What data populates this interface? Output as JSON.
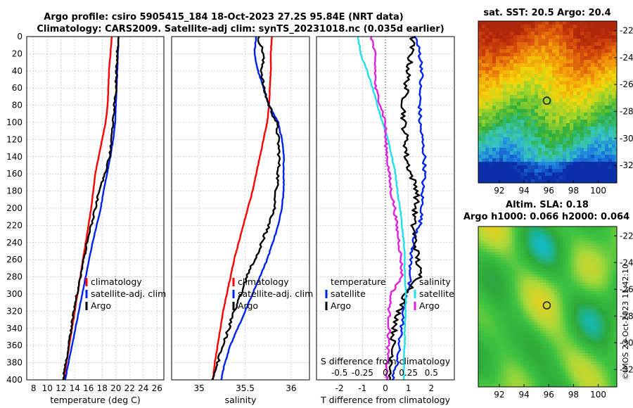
{
  "colors": {
    "climatology": "#ff0000",
    "satellite": "#0022ee",
    "argo": "#000000",
    "cyan": "#22e0e8",
    "magenta": "#e020e0",
    "grid": "#c8c8c8"
  },
  "header": {
    "line1": "Argo profile: csiro 5905415_184 18-Oct-2023 27.2S 95.84E (NRT data)",
    "line2": "Climatology: CARS2009. Satellite-adj clim: synTS_20231018.nc (0.035d earlier)"
  },
  "copyright": "©IMOS 23-Oct-2023 11:42:10",
  "chart_data": [
    {
      "id": "temperature",
      "type": "line",
      "xlabel": "temperature (deg C)",
      "ylabel": "",
      "xlim": [
        7,
        27
      ],
      "ylim": [
        400,
        0
      ],
      "xticks": [
        "8",
        "10",
        "12",
        "14",
        "16",
        "18",
        "20",
        "22",
        "24",
        "26"
      ],
      "xtick_values": [
        8,
        10,
        12,
        14,
        16,
        18,
        20,
        22,
        24,
        26
      ],
      "yticks": [
        "0",
        "20",
        "40",
        "60",
        "80",
        "100",
        "120",
        "140",
        "160",
        "180",
        "200",
        "220",
        "240",
        "260",
        "280",
        "300",
        "320",
        "340",
        "360",
        "380",
        "400"
      ],
      "ytick_values": [
        0,
        20,
        40,
        60,
        80,
        100,
        120,
        140,
        160,
        180,
        200,
        220,
        240,
        260,
        280,
        300,
        320,
        340,
        360,
        380,
        400
      ],
      "grid": true,
      "legend": [
        "climatology",
        "satellite-adj. clim",
        "Argo"
      ],
      "legend_position": "bottom-right",
      "depth": [
        0,
        20,
        40,
        60,
        80,
        100,
        120,
        140,
        160,
        180,
        200,
        220,
        240,
        260,
        280,
        300,
        320,
        340,
        360,
        380,
        400
      ],
      "series": [
        {
          "name": "climatology",
          "color": "red",
          "values": [
            19.4,
            19.2,
            19.0,
            18.9,
            18.8,
            18.5,
            18.0,
            17.5,
            17.0,
            16.7,
            16.4,
            16.0,
            15.6,
            15.2,
            14.8,
            14.4,
            14.0,
            13.6,
            13.2,
            12.8,
            12.4
          ]
        },
        {
          "name": "satellite-adj. clim",
          "color": "blue",
          "values": [
            20.4,
            20.3,
            20.2,
            20.1,
            20.0,
            19.9,
            19.6,
            19.2,
            18.7,
            18.2,
            17.8,
            17.2,
            16.6,
            16.1,
            15.6,
            15.1,
            14.6,
            14.1,
            13.6,
            13.1,
            12.6
          ]
        },
        {
          "name": "Argo",
          "color": "black",
          "values": [
            20.3,
            20.2,
            20.1,
            20.0,
            19.8,
            19.6,
            19.4,
            19.1,
            18.4,
            17.6,
            17.0,
            16.4,
            15.8,
            15.3,
            14.8,
            14.3,
            13.9,
            13.5,
            13.1,
            12.7,
            12.3
          ]
        }
      ]
    },
    {
      "id": "salinity",
      "type": "line",
      "xlabel": "salinity",
      "xlim": [
        34.7,
        36.2
      ],
      "ylim": [
        400,
        0
      ],
      "xticks": [
        "35",
        "35.5",
        "36"
      ],
      "xtick_values": [
        35,
        35.5,
        36
      ],
      "grid": true,
      "legend": [
        "climatology",
        "satellite-adj. clim",
        "Argo"
      ],
      "legend_position": "bottom-right",
      "depth": [
        0,
        20,
        40,
        60,
        80,
        100,
        120,
        140,
        160,
        180,
        200,
        220,
        240,
        260,
        280,
        300,
        320,
        340,
        360,
        380,
        400
      ],
      "series": [
        {
          "name": "climatology",
          "color": "red",
          "values": [
            35.79,
            35.78,
            35.78,
            35.77,
            35.76,
            35.74,
            35.7,
            35.66,
            35.62,
            35.58,
            35.53,
            35.48,
            35.43,
            35.38,
            35.34,
            35.3,
            35.26,
            35.23,
            35.2,
            35.17,
            35.15
          ]
        },
        {
          "name": "satellite-adj. clim",
          "color": "blue",
          "values": [
            35.62,
            35.6,
            35.64,
            35.7,
            35.76,
            35.86,
            35.9,
            35.92,
            35.92,
            35.92,
            35.9,
            35.86,
            35.8,
            35.74,
            35.66,
            35.58,
            35.5,
            35.42,
            35.34,
            35.28,
            35.24
          ]
        },
        {
          "name": "Argo",
          "color": "black",
          "values": [
            35.64,
            35.7,
            35.68,
            35.7,
            35.76,
            35.84,
            35.86,
            35.87,
            35.86,
            35.84,
            35.82,
            35.76,
            35.68,
            35.6,
            35.52,
            35.45,
            35.38,
            35.32,
            35.26,
            35.2,
            35.14
          ]
        }
      ]
    },
    {
      "id": "difference",
      "type": "line",
      "xlabel": "T difference from climatology",
      "xlabel_top": "S difference from climatology",
      "xlim": [
        -3,
        3
      ],
      "ylim": [
        400,
        0
      ],
      "xticks": [
        "-2",
        "-1",
        "0",
        "1",
        "2"
      ],
      "xtick_values": [
        -2,
        -1,
        0,
        1,
        2
      ],
      "sticks": [
        "-0.5",
        "-0.25",
        "0",
        "0.25",
        "0.5"
      ],
      "stick_values": [
        -0.5,
        -0.25,
        0,
        0.25,
        0.5
      ],
      "grid": true,
      "legend_left_title": "temperature",
      "legend_left": [
        "satellite",
        "Argo"
      ],
      "legend_right_title": "salinity",
      "legend_right": [
        "satellite",
        "Argo"
      ],
      "depth": [
        0,
        20,
        40,
        60,
        80,
        100,
        120,
        140,
        160,
        180,
        200,
        220,
        240,
        260,
        280,
        300,
        320,
        340,
        360,
        380,
        400
      ],
      "series": [
        {
          "name": "T satellite",
          "color": "blue",
          "units": "T",
          "values": [
            1.3,
            1.5,
            1.6,
            1.5,
            1.5,
            1.5,
            1.6,
            1.7,
            1.7,
            1.6,
            1.6,
            1.5,
            1.2,
            1.1,
            1.1,
            0.9,
            0.8,
            0.7,
            0.6,
            0.5,
            0.3
          ]
        },
        {
          "name": "T Argo",
          "color": "black",
          "units": "T",
          "values": [
            1.2,
            1.1,
            1.0,
            0.9,
            0.8,
            0.8,
            0.9,
            0.9,
            1.1,
            1.4,
            1.3,
            1.2,
            1.3,
            1.4,
            1.5,
            0.9,
            0.6,
            0.4,
            0.3,
            0.3,
            0.2
          ]
        },
        {
          "name": "S satellite",
          "color": "cyan",
          "units": "S",
          "values": [
            -0.3,
            -0.27,
            -0.2,
            -0.14,
            -0.09,
            -0.03,
            0.03,
            0.07,
            0.11,
            0.13,
            0.16,
            0.18,
            0.2,
            0.21,
            0.21,
            0.22,
            0.22,
            0.21,
            0.21,
            0.2,
            0.2
          ]
        },
        {
          "name": "S Argo",
          "color": "magenta",
          "units": "S",
          "values": [
            -0.15,
            -0.12,
            -0.11,
            -0.11,
            -0.05,
            0.0,
            0.0,
            0.02,
            0.04,
            0.06,
            0.1,
            0.12,
            0.15,
            0.17,
            0.18,
            0.06,
            0.04,
            0.04,
            0.03,
            0.02,
            0.01
          ]
        }
      ]
    },
    {
      "id": "sst-map",
      "type": "heatmap",
      "title": "sat. SST: 20.5 Argo: 20.4",
      "xlim": [
        90.3,
        101.5
      ],
      "ylim": [
        -33.3,
        -21.3
      ],
      "xticks": [
        "92",
        "94",
        "96",
        "98",
        "100"
      ],
      "xtick_values": [
        92,
        94,
        96,
        98,
        100
      ],
      "yticks": [
        "-22",
        "-24",
        "-26",
        "-28",
        "-30",
        "-32"
      ],
      "ytick_values": [
        -22,
        -24,
        -26,
        -28,
        -30,
        -32
      ],
      "marker": {
        "lon": 95.84,
        "lat": -27.2
      },
      "color_stops": [
        "#0b2fa8",
        "#1e7fe0",
        "#38c8c0",
        "#2fae3c",
        "#9ad22c",
        "#f2d60a",
        "#f29a0a",
        "#d8500c",
        "#b0280c"
      ]
    },
    {
      "id": "sla-map",
      "type": "heatmap",
      "title": "Altim. SLA: 0.18",
      "subtitle": "Argo h1000: 0.066 h2000: 0.064",
      "xlim": [
        90.3,
        101.5
      ],
      "ylim": [
        -33.3,
        -21.3
      ],
      "xticks": [
        "92",
        "94",
        "96",
        "98",
        "100"
      ],
      "xtick_values": [
        92,
        94,
        96,
        98,
        100
      ],
      "yticks": [
        "-22",
        "-24",
        "-26",
        "-28",
        "-30",
        "-32"
      ],
      "ytick_values": [
        -22,
        -24,
        -26,
        -28,
        -30,
        -32
      ],
      "marker": {
        "lon": 95.84,
        "lat": -27.2
      },
      "color_stops": [
        "#13b8c0",
        "#2fa83a",
        "#3cc240",
        "#a8d83a",
        "#e8d020",
        "#f2a030"
      ]
    }
  ]
}
